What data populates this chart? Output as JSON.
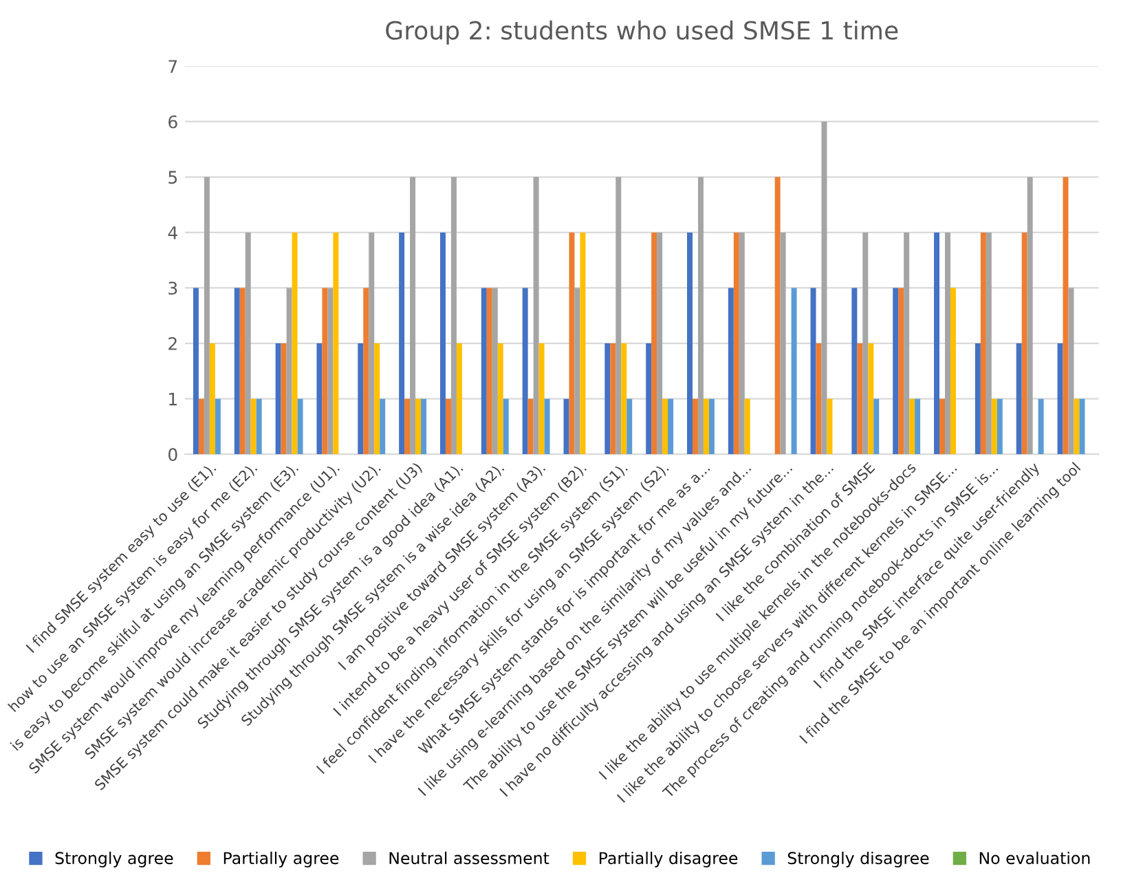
{
  "chart_data": {
    "type": "bar",
    "title": "Group 2: students who used SMSE 1 time",
    "categories": [
      "I find SMSE system easy to use (E1).",
      "how to use an SMSE system is easy for me (E2).",
      "is easy to become skilful at using an SMSE system (E3).",
      "SMSE system would improve my learning performance (U1).",
      "SMSE system would increase academic productivity (U2).",
      "SMSE system could make it easier to study course content (U3)",
      "Studying through SMSE system is a good idea (A1).",
      "Studying through SMSE system is a wise idea (A2).",
      "I am positive toward SMSE system (A3).",
      "I intend to be a heavy user of SMSE system (B2).",
      "I feel confident finding information in the SMSE system (S1).",
      "I have the necessary skills for using an SMSE system (S2).",
      "What SMSE system stands for is important for me as a...",
      "I like using e-learning based on the similarity of my values and...",
      "The ability to use the SMSE system will be useful in my future...",
      "I have no difficulty accessing and using an SMSE system in the...",
      "I like the combination of SMSE",
      "I like the ability to use multiple kernels in the notebooks-docs",
      "I like the ability to choose servers with different kernels in SMSE...",
      "The process of creating and running notebook-docts in SMSE is...",
      "I find the SMSE interface quite user-friendly",
      "I find the SMSE to be an important online learning tool"
    ],
    "series": [
      {
        "name": "Strongly agree",
        "color": "#4472c4",
        "values": [
          3,
          3,
          2,
          2,
          2,
          4,
          4,
          3,
          3,
          1,
          2,
          2,
          4,
          3,
          0,
          3,
          3,
          3,
          4,
          2,
          2,
          2
        ]
      },
      {
        "name": "Partially agree",
        "color": "#ed7d31",
        "values": [
          1,
          3,
          2,
          3,
          3,
          1,
          1,
          3,
          1,
          4,
          2,
          4,
          1,
          4,
          5,
          2,
          2,
          3,
          1,
          4,
          4,
          5
        ]
      },
      {
        "name": "Neutral assessment",
        "color": "#a5a5a5",
        "values": [
          5,
          4,
          3,
          3,
          4,
          5,
          5,
          3,
          5,
          3,
          5,
          4,
          5,
          4,
          4,
          6,
          4,
          4,
          4,
          4,
          5,
          3
        ]
      },
      {
        "name": "Partially disagree",
        "color": "#ffc000",
        "values": [
          2,
          1,
          4,
          4,
          2,
          1,
          2,
          2,
          2,
          4,
          2,
          1,
          1,
          1,
          0,
          1,
          2,
          1,
          3,
          1,
          0,
          1
        ]
      },
      {
        "name": "Strongly disagree",
        "color": "#5b9bd5",
        "values": [
          1,
          1,
          1,
          0,
          1,
          1,
          0,
          1,
          1,
          0,
          1,
          1,
          1,
          0,
          3,
          0,
          1,
          1,
          0,
          1,
          1,
          1
        ]
      },
      {
        "name": "No evaluation",
        "color": "#70ad47",
        "values": [
          0,
          0,
          0,
          0,
          0,
          0,
          0,
          0,
          0,
          0,
          0,
          0,
          0,
          0,
          0,
          0,
          0,
          0,
          0,
          0,
          0,
          0
        ]
      }
    ],
    "ylim": [
      0,
      7
    ],
    "yticks": [
      0,
      1,
      2,
      3,
      4,
      5,
      6,
      7
    ],
    "grid": "y",
    "legend": "bottom"
  }
}
